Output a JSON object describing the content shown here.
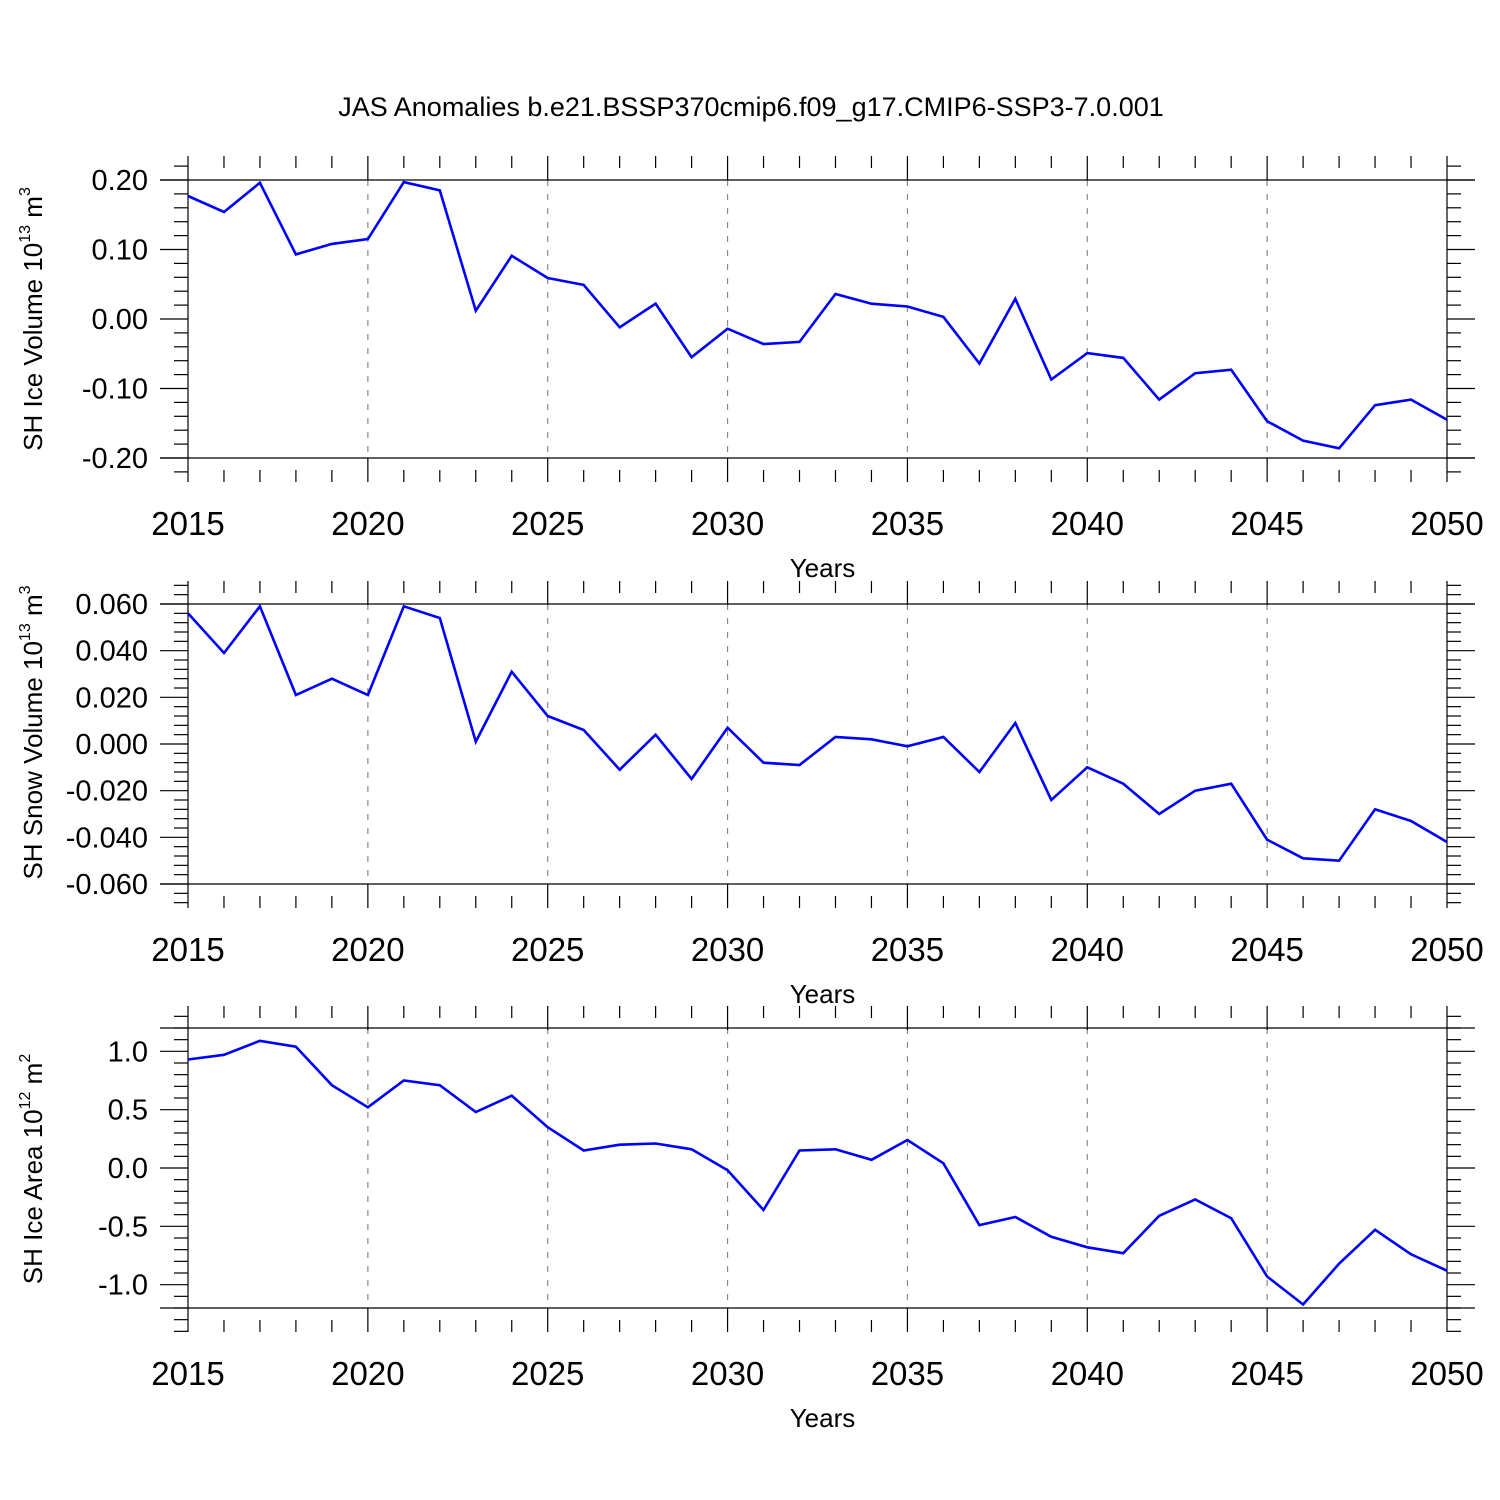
{
  "title": "JAS Anomalies b.e21.BSSP370cmip6.f09_g17.CMIP6-SSP3-7.0.001",
  "colors": {
    "line": "#0000ff",
    "grid": "#8a8a8a",
    "frame": "#000000"
  },
  "chart_data": [
    {
      "type": "line",
      "title": "JAS Anomalies b.e21.BSSP370cmip6.f09_g17.CMIP6-SSP3-7.0.001",
      "xlabel": "Years",
      "ylabel": {
        "main": "SH Ice Volume 10",
        "sup": "13",
        "unit": " m",
        "unit_sup": "3"
      },
      "xlim": [
        2015,
        2050
      ],
      "ylim": [
        -0.2,
        0.2
      ],
      "xticks": [
        2015,
        2020,
        2025,
        2030,
        2035,
        2040,
        2045,
        2050
      ],
      "yticks": [
        -0.2,
        -0.1,
        0.0,
        0.1,
        0.2
      ],
      "ytick_labels": [
        "-0.20",
        "-0.10",
        "0.00",
        "0.10",
        "0.20"
      ],
      "grid": "vertical dashed at major x ticks",
      "series": [
        {
          "name": "SH Ice Volume",
          "x": [
            2015,
            2016,
            2017,
            2018,
            2019,
            2020,
            2021,
            2022,
            2023,
            2024,
            2025,
            2026,
            2027,
            2028,
            2029,
            2030,
            2031,
            2032,
            2033,
            2034,
            2035,
            2036,
            2037,
            2038,
            2039,
            2040,
            2041,
            2042,
            2043,
            2044,
            2045,
            2046,
            2047,
            2048,
            2049,
            2050
          ],
          "values": [
            0.177,
            0.154,
            0.196,
            0.093,
            0.108,
            0.115,
            0.197,
            0.185,
            0.012,
            0.091,
            0.059,
            0.049,
            -0.012,
            0.022,
            -0.055,
            -0.014,
            -0.036,
            -0.033,
            0.036,
            0.022,
            0.018,
            0.003,
            -0.064,
            0.029,
            -0.087,
            -0.049,
            -0.056,
            -0.116,
            -0.078,
            -0.073,
            -0.147,
            -0.175,
            -0.186,
            -0.124,
            -0.116,
            -0.145
          ]
        }
      ]
    },
    {
      "type": "line",
      "xlabel": "Years",
      "ylabel": {
        "main": "SH Snow Volume 10",
        "sup": "13",
        "unit": " m",
        "unit_sup": "3"
      },
      "xlim": [
        2015,
        2050
      ],
      "ylim": [
        -0.06,
        0.06
      ],
      "xticks": [
        2015,
        2020,
        2025,
        2030,
        2035,
        2040,
        2045,
        2050
      ],
      "yticks": [
        -0.06,
        -0.04,
        -0.02,
        0.0,
        0.02,
        0.04,
        0.06
      ],
      "ytick_labels": [
        "-0.060",
        "-0.040",
        "-0.020",
        "0.000",
        "0.020",
        "0.040",
        "0.060"
      ],
      "grid": "vertical dashed at major x ticks",
      "series": [
        {
          "name": "SH Snow Volume",
          "x": [
            2015,
            2016,
            2017,
            2018,
            2019,
            2020,
            2021,
            2022,
            2023,
            2024,
            2025,
            2026,
            2027,
            2028,
            2029,
            2030,
            2031,
            2032,
            2033,
            2034,
            2035,
            2036,
            2037,
            2038,
            2039,
            2040,
            2041,
            2042,
            2043,
            2044,
            2045,
            2046,
            2047,
            2048,
            2049,
            2050
          ],
          "values": [
            0.056,
            0.039,
            0.059,
            0.021,
            0.028,
            0.021,
            0.059,
            0.054,
            0.001,
            0.031,
            0.012,
            0.006,
            -0.011,
            0.004,
            -0.015,
            0.007,
            -0.008,
            -0.009,
            0.003,
            0.002,
            -0.001,
            0.003,
            -0.012,
            0.009,
            -0.024,
            -0.01,
            -0.017,
            -0.03,
            -0.02,
            -0.017,
            -0.041,
            -0.049,
            -0.05,
            -0.028,
            -0.033,
            -0.042
          ]
        }
      ]
    },
    {
      "type": "line",
      "xlabel": "Years",
      "ylabel": {
        "main": "SH Ice Area 10",
        "sup": "12",
        "unit": " m",
        "unit_sup": "2"
      },
      "xlim": [
        2015,
        2050
      ],
      "ylim": [
        -1.2,
        1.2
      ],
      "xticks": [
        2015,
        2020,
        2025,
        2030,
        2035,
        2040,
        2045,
        2050
      ],
      "yticks": [
        -1.0,
        -0.5,
        0.0,
        0.5,
        1.0
      ],
      "ytick_labels": [
        "-1.0",
        "-0.5",
        "0.0",
        "0.5",
        "1.0"
      ],
      "grid": "vertical dashed at major x ticks",
      "series": [
        {
          "name": "SH Ice Area",
          "x": [
            2015,
            2016,
            2017,
            2018,
            2019,
            2020,
            2021,
            2022,
            2023,
            2024,
            2025,
            2026,
            2027,
            2028,
            2029,
            2030,
            2031,
            2032,
            2033,
            2034,
            2035,
            2036,
            2037,
            2038,
            2039,
            2040,
            2041,
            2042,
            2043,
            2044,
            2045,
            2046,
            2047,
            2048,
            2049,
            2050
          ],
          "values": [
            0.93,
            0.97,
            1.09,
            1.04,
            0.71,
            0.52,
            0.75,
            0.71,
            0.48,
            0.62,
            0.35,
            0.15,
            0.2,
            0.21,
            0.16,
            -0.02,
            -0.36,
            0.15,
            0.16,
            0.07,
            0.24,
            0.04,
            -0.49,
            -0.42,
            -0.59,
            -0.68,
            -0.73,
            -0.41,
            -0.27,
            -0.43,
            -0.93,
            -1.17,
            -0.82,
            -0.53,
            -0.74,
            -0.88
          ]
        }
      ]
    }
  ]
}
